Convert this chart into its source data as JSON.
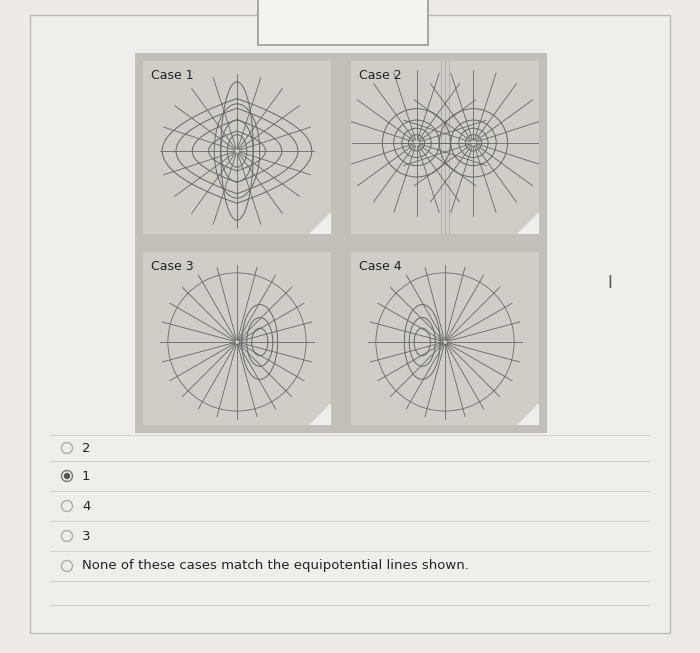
{
  "page_bg": "#eeebe6",
  "card_bg": "#f0eeea",
  "panel_bg": "#d0ccc6",
  "grid_bg": "#c2beb8",
  "line_color": "#666666",
  "text_color": "#222222",
  "sep_color": "#cccccc",
  "radio_options": [
    "2",
    "1",
    "4",
    "3",
    "None of these cases match the equipotential lines shown."
  ],
  "selected_radio": 1,
  "cursor_label": "I",
  "panel_lw": 0.7,
  "n_radial_case1": 16,
  "n_radial_case2": 18,
  "n_radial_case3": 22,
  "n_radial_case4": 22
}
